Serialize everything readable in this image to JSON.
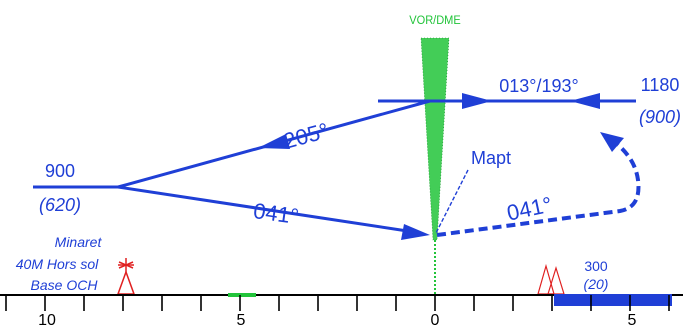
{
  "colors": {
    "track": "#1f3fd6",
    "beacon": "#22c43a",
    "obstacle": "#e02020",
    "axis": "#000000"
  },
  "labels": {
    "beacon": "VOR/DME",
    "track_outbound_inbound": "013°/193°",
    "heading_205": "205°",
    "heading_041_a": "041°",
    "heading_041_b": "041°",
    "mapt": "Mapt",
    "alt_left": "900",
    "alt_left_height": "(620)",
    "alt_right": "1180",
    "alt_right_height": "(900)",
    "obstacle_title": "Minaret",
    "obstacle_line2": "40M Hors sol",
    "obstacle_line3": "Base OCH",
    "alt_ground": "300",
    "alt_ground_height": "(20)"
  },
  "scale": {
    "ticks": [
      "10",
      "5",
      "0",
      "5"
    ]
  }
}
